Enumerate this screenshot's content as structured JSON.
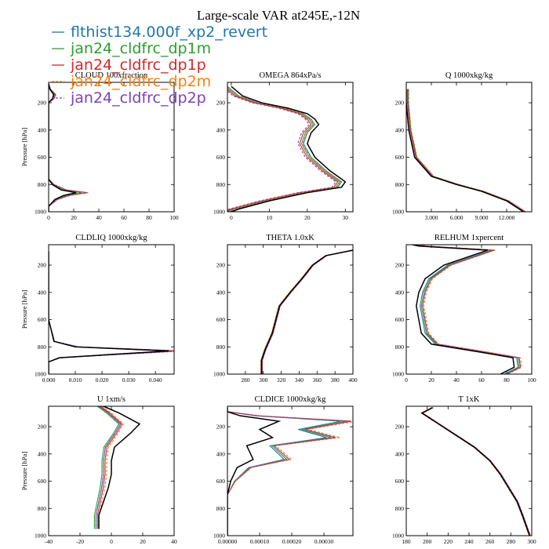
{
  "figure_title": "Large-scale VAR at245E,-12N",
  "legend": [
    {
      "label": "flthist134.000f_xp2_revert",
      "color": "#1f77b4",
      "dash": "solid"
    },
    {
      "label": "jan24_cldfrc_dp1m",
      "color": "#2ca02c",
      "dash": "solid"
    },
    {
      "label": "jan24_cldfrc_dp1p",
      "color": "#d62728",
      "dash": "solid"
    },
    {
      "label": "jan24_cldfrc_dp2m",
      "color": "#ff7f0e",
      "dash": "dashed"
    },
    {
      "label": "jan24_cldfrc_dp2p",
      "color": "#7f3fbf",
      "dash": "dashed"
    }
  ],
  "chart_data": [
    {
      "type": "line",
      "title": "CLOUD 100xfraction",
      "ylabel": "Pressure [hPa]",
      "xlim": [
        0,
        100
      ],
      "xticks": [
        0,
        20,
        40,
        60,
        80,
        100
      ],
      "xticklabels": [
        "0",
        "20",
        "40",
        "60",
        "80",
        "100"
      ],
      "ylim": [
        1000,
        50
      ],
      "yticks": [
        200,
        400,
        600,
        800,
        1000
      ],
      "ref": [
        [
          0,
          60
        ],
        [
          1,
          100
        ],
        [
          4,
          140
        ],
        [
          3,
          170
        ],
        [
          0,
          200
        ],
        [
          0,
          250
        ],
        [
          0,
          400
        ],
        [
          0,
          600
        ],
        [
          0,
          760
        ],
        [
          3,
          800
        ],
        [
          10,
          840
        ],
        [
          22,
          860
        ],
        [
          12,
          880
        ],
        [
          5,
          910
        ],
        [
          0,
          960
        ],
        [
          0,
          1000
        ]
      ],
      "series": [
        {
          "shift": 0,
          "scale": 1.0
        },
        {
          "shift": 0,
          "scale": 1.2
        },
        {
          "shift": 0,
          "scale": 1.4
        },
        {
          "shift": 0,
          "scale": 1.45
        },
        {
          "shift": 0,
          "scale": 1.4
        }
      ]
    },
    {
      "type": "line",
      "title": "OMEGA  864xPa/s",
      "ylabel": "",
      "xlim": [
        -1,
        32
      ],
      "xticks": [
        0,
        10,
        20,
        30
      ],
      "xticklabels": [
        "0",
        "10",
        "20",
        "30"
      ],
      "ylim": [
        1000,
        50
      ],
      "yticks": [
        200,
        400,
        600,
        800,
        1000
      ],
      "ref": [
        [
          0,
          80
        ],
        [
          3,
          150
        ],
        [
          8,
          200
        ],
        [
          15,
          240
        ],
        [
          20,
          280
        ],
        [
          22,
          320
        ],
        [
          23,
          360
        ],
        [
          21,
          420
        ],
        [
          20,
          500
        ],
        [
          22,
          600
        ],
        [
          26,
          700
        ],
        [
          30,
          780
        ],
        [
          29,
          820
        ],
        [
          20,
          860
        ],
        [
          10,
          920
        ],
        [
          2,
          980
        ],
        [
          0,
          1000
        ]
      ],
      "series": [
        {
          "shift": -1,
          "scale": 1.0
        },
        {
          "shift": -1.5,
          "scale": 1.0
        },
        {
          "shift": -2,
          "scale": 1.0
        },
        {
          "shift": -1.2,
          "scale": 1.0
        },
        {
          "shift": -2.5,
          "scale": 1.0
        }
      ]
    },
    {
      "type": "line",
      "title": "Q  1000xkg/kg",
      "ylabel": "",
      "xlim": [
        0,
        15
      ],
      "xticks": [
        3,
        6,
        9,
        12
      ],
      "xticklabels": [
        "3.000",
        "6.000",
        "9.000",
        "12.000"
      ],
      "ylim": [
        1000,
        50
      ],
      "yticks": [
        200,
        400,
        600,
        800,
        1000
      ],
      "ref": [
        [
          0,
          100
        ],
        [
          0,
          200
        ],
        [
          0.3,
          400
        ],
        [
          1,
          600
        ],
        [
          3,
          740
        ],
        [
          6,
          800
        ],
        [
          9,
          850
        ],
        [
          12,
          920
        ],
        [
          14,
          1000
        ]
      ],
      "series": [
        {
          "shift": 0.2,
          "scale": 1.0
        },
        {
          "shift": 0.25,
          "scale": 1.0
        },
        {
          "shift": 0.15,
          "scale": 1.0
        },
        {
          "shift": 0.3,
          "scale": 1.0
        },
        {
          "shift": 0.2,
          "scale": 1.0
        }
      ]
    },
    {
      "type": "line",
      "title": "CLDLIQ  1000xkg/kg",
      "ylabel": "Pressure [hPa]",
      "xlim": [
        0,
        0.047
      ],
      "xticks": [
        0,
        0.01,
        0.02,
        0.03,
        0.04
      ],
      "xticklabels": [
        "0.000",
        "0.010",
        "0.020",
        "0.030",
        "0.040"
      ],
      "ylim": [
        1000,
        50
      ],
      "yticks": [
        200,
        400,
        600,
        800,
        1000
      ],
      "ref": [
        [
          0,
          100
        ],
        [
          0,
          600
        ],
        [
          0.002,
          760
        ],
        [
          0.01,
          800
        ],
        [
          0.045,
          830
        ],
        [
          0.02,
          860
        ],
        [
          0.004,
          880
        ],
        [
          0,
          910
        ],
        [
          0,
          1000
        ]
      ],
      "series": [
        {
          "shift": 0,
          "scale": 1.0
        },
        {
          "shift": 0,
          "scale": 1.05
        },
        {
          "shift": 0,
          "scale": 1.1
        },
        {
          "shift": 0,
          "scale": 1.08
        },
        {
          "shift": 0,
          "scale": 1.12
        }
      ]
    },
    {
      "type": "line",
      "title": "THETA  1.0xK",
      "ylabel": "",
      "xlim": [
        260,
        400
      ],
      "xticks": [
        280,
        300,
        320,
        340,
        360,
        380,
        400
      ],
      "xticklabels": [
        "280",
        "300",
        "320",
        "340",
        "360",
        "380",
        "400"
      ],
      "ylim": [
        1000,
        50
      ],
      "yticks": [
        200,
        400,
        600,
        800,
        1000
      ],
      "ref": [
        [
          298,
          1000
        ],
        [
          298,
          900
        ],
        [
          302,
          820
        ],
        [
          310,
          700
        ],
        [
          318,
          500
        ],
        [
          330,
          400
        ],
        [
          343,
          300
        ],
        [
          355,
          200
        ],
        [
          370,
          130
        ],
        [
          400,
          90
        ]
      ],
      "series": [
        {
          "shift": 0.5,
          "scale": 1.0
        },
        {
          "shift": -0.5,
          "scale": 1.0
        },
        {
          "shift": 0.8,
          "scale": 1.0
        },
        {
          "shift": -0.8,
          "scale": 1.0
        },
        {
          "shift": 1.0,
          "scale": 1.0
        }
      ]
    },
    {
      "type": "line",
      "title": "RELHUM  1xpercent",
      "ylabel": "",
      "xlim": [
        0,
        100
      ],
      "xticks": [
        0,
        20,
        40,
        60,
        80,
        100
      ],
      "xticklabels": [
        "0",
        "20",
        "40",
        "60",
        "80",
        "100"
      ],
      "ylim": [
        1000,
        50
      ],
      "yticks": [
        200,
        400,
        600,
        800,
        1000
      ],
      "ref": [
        [
          5,
          50
        ],
        [
          10,
          60
        ],
        [
          65,
          90
        ],
        [
          30,
          200
        ],
        [
          15,
          300
        ],
        [
          10,
          400
        ],
        [
          8,
          500
        ],
        [
          10,
          600
        ],
        [
          12,
          700
        ],
        [
          20,
          780
        ],
        [
          60,
          840
        ],
        [
          85,
          880
        ],
        [
          86,
          950
        ],
        [
          75,
          1000
        ]
      ],
      "series": [
        {
          "shift": 3,
          "scale": 1.0
        },
        {
          "shift": 4,
          "scale": 1.0
        },
        {
          "shift": 5,
          "scale": 1.0
        },
        {
          "shift": 6,
          "scale": 1.0
        },
        {
          "shift": 5,
          "scale": 1.0
        }
      ]
    },
    {
      "type": "line",
      "title": "U  1xm/s",
      "ylabel": "Pressure [hPa]",
      "xlim": [
        -40,
        40
      ],
      "xticks": [
        -40,
        -20,
        0,
        20,
        40
      ],
      "xticklabels": [
        "-40",
        "-20",
        "0",
        "20",
        "40"
      ],
      "ylim": [
        1000,
        50
      ],
      "yticks": [
        200,
        400,
        600,
        800,
        1000
      ],
      "ref": [
        [
          -5,
          50
        ],
        [
          5,
          100
        ],
        [
          18,
          180
        ],
        [
          12,
          250
        ],
        [
          2,
          350
        ],
        [
          0,
          450
        ],
        [
          0,
          550
        ],
        [
          -2,
          650
        ],
        [
          -5,
          750
        ],
        [
          -8,
          850
        ],
        [
          -8,
          950
        ]
      ],
      "series": [
        {
          "shift": -5,
          "scale": 0.6
        },
        {
          "shift": -6,
          "scale": 0.6
        },
        {
          "shift": -4,
          "scale": 0.6
        },
        {
          "shift": -3,
          "scale": 0.6
        },
        {
          "shift": -5,
          "scale": 0.6
        }
      ]
    },
    {
      "type": "line",
      "title": "CLDICE  1000xkg/kg",
      "ylabel": "",
      "xlim": [
        0,
        0.00039
      ],
      "xticks": [
        0,
        0.0001,
        0.0002,
        0.0003
      ],
      "xticklabels": [
        "0.00000",
        "0.00010",
        "0.00020",
        "0.00030"
      ],
      "ylim": [
        1000,
        50
      ],
      "yticks": [
        200,
        400,
        600,
        800,
        1000
      ],
      "ref": [
        [
          0,
          60
        ],
        [
          0,
          90
        ],
        [
          4e-05,
          120
        ],
        [
          0.00016,
          160
        ],
        [
          0.0001,
          220
        ],
        [
          0.00014,
          280
        ],
        [
          6e-05,
          340
        ],
        [
          8e-05,
          440
        ],
        [
          3e-05,
          500
        ],
        [
          1e-05,
          600
        ],
        [
          0,
          700
        ],
        [
          0,
          1000
        ]
      ],
      "series": [
        {
          "shift": 0,
          "scale": 2.2
        },
        {
          "shift": 0,
          "scale": 2.3
        },
        {
          "shift": 0,
          "scale": 2.4
        },
        {
          "shift": 0,
          "scale": 2.5
        },
        {
          "shift": 0,
          "scale": 2.4
        }
      ]
    },
    {
      "type": "line",
      "title": "T  1xK",
      "ylabel": "",
      "xlim": [
        180,
        300
      ],
      "xticks": [
        180,
        200,
        220,
        240,
        260,
        280,
        300
      ],
      "xticklabels": [
        "180",
        "200",
        "220",
        "240",
        "260",
        "280",
        "300"
      ],
      "ylim": [
        1000,
        50
      ],
      "yticks": [
        200,
        400,
        600,
        800,
        1000
      ],
      "ref": [
        [
          205,
          60
        ],
        [
          195,
          100
        ],
        [
          205,
          150
        ],
        [
          225,
          250
        ],
        [
          245,
          350
        ],
        [
          260,
          450
        ],
        [
          270,
          550
        ],
        [
          278,
          650
        ],
        [
          286,
          750
        ],
        [
          291,
          850
        ],
        [
          298,
          1000
        ]
      ],
      "series": [
        {
          "shift": 0.3,
          "scale": 1.0
        },
        {
          "shift": -0.3,
          "scale": 1.0
        },
        {
          "shift": 0.6,
          "scale": 1.0
        },
        {
          "shift": -0.6,
          "scale": 1.0
        },
        {
          "shift": 0.8,
          "scale": 1.0
        }
      ]
    }
  ]
}
